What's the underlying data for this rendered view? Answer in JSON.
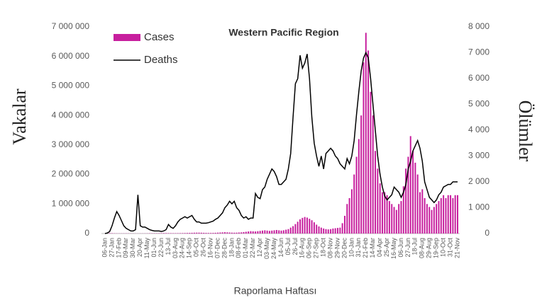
{
  "chart_data": {
    "type": "bar-line",
    "title": "Western Pacific Region",
    "y_label": "Vakalar",
    "y2_label": "Ölümler",
    "x_label": "Raporlama Haftası",
    "legend": "top-left",
    "categories": [
      "06-Jan",
      null,
      null,
      "27-Jan",
      null,
      null,
      "17-Feb",
      null,
      null,
      "09-Mar",
      null,
      null,
      "30-Mar",
      null,
      null,
      "20-Apr",
      null,
      null,
      "11-May",
      null,
      null,
      "01-Jun",
      null,
      null,
      "22-Jun",
      null,
      null,
      "13-Jul",
      null,
      null,
      "03-Aug",
      null,
      null,
      "24-Aug",
      null,
      null,
      "14-Sep",
      null,
      null,
      "05-Oct",
      null,
      null,
      "26-Oct",
      null,
      null,
      "16-Nov",
      null,
      null,
      "07-Dec",
      null,
      null,
      "28-Dec",
      null,
      null,
      "18-Jan",
      null,
      null,
      "08-Feb",
      null,
      null,
      "01-Mar",
      null,
      null,
      "22-Mar",
      null,
      null,
      "12-Apr",
      null,
      null,
      "03-May",
      null,
      null,
      "24-May",
      null,
      null,
      "14-Jun",
      null,
      null,
      "05-Jul",
      null,
      null,
      "26-Jul",
      null,
      null,
      "16-Aug",
      null,
      null,
      "06-Sep",
      null,
      null,
      "27-Sep",
      null,
      null,
      "18-Oct",
      null,
      null,
      "08-Nov",
      null,
      null,
      "29-Nov",
      null,
      null,
      "20-Dec",
      null,
      null,
      "10-Jan",
      null,
      null,
      "31-Jan",
      null,
      null,
      "21-Feb",
      null,
      null,
      "14-Mar",
      null,
      null,
      "04-Apr",
      null,
      null,
      "25-Apr",
      null,
      null,
      "16-May",
      null,
      null,
      "06-Jun",
      null,
      null,
      "27-Jun",
      null,
      null,
      "18-Jul",
      null,
      null,
      "08-Aug",
      null,
      null,
      "29-Aug",
      null,
      null,
      "19-Sep",
      null,
      null,
      "10-Oct",
      null,
      null,
      "31-Oct",
      null,
      null,
      "21-Nov"
    ],
    "series": [
      {
        "name": "Cases",
        "kind": "bar",
        "color": "#c71f9e",
        "values": [
          1000,
          5000,
          15000,
          12000,
          8000,
          6000,
          5000,
          5000,
          6000,
          7000,
          6000,
          5000,
          4000,
          3000,
          3000,
          4000,
          4000,
          5000,
          6000,
          8000,
          9000,
          10000,
          10000,
          12000,
          14000,
          16000,
          15000,
          14000,
          13000,
          12000,
          12000,
          13000,
          14000,
          16000,
          18000,
          20000,
          22000,
          25000,
          28000,
          30000,
          30000,
          28000,
          25000,
          22000,
          20000,
          20000,
          22000,
          25000,
          30000,
          35000,
          40000,
          45000,
          40000,
          35000,
          30000,
          28000,
          30000,
          35000,
          40000,
          50000,
          60000,
          70000,
          80000,
          75000,
          70000,
          80000,
          90000,
          100000,
          110000,
          100000,
          90000,
          100000,
          110000,
          120000,
          110000,
          100000,
          110000,
          130000,
          150000,
          200000,
          250000,
          320000,
          400000,
          480000,
          530000,
          560000,
          540000,
          500000,
          450000,
          380000,
          300000,
          240000,
          200000,
          170000,
          150000,
          140000,
          150000,
          170000,
          180000,
          190000,
          200000,
          350000,
          600000,
          1000000,
          1200000,
          1500000,
          2000000,
          2600000,
          3200000,
          4000000,
          5800000,
          6800000,
          6200000,
          4800000,
          4000000,
          2800000,
          2200000,
          1700000,
          1400000,
          1400000,
          1300000,
          1100000,
          1000000,
          900000,
          800000,
          1000000,
          1100000,
          1600000,
          2200000,
          2600000,
          3300000,
          2800000,
          2400000,
          2000000,
          1400000,
          1500000,
          1200000,
          1000000,
          900000,
          800000,
          900000,
          1000000,
          1100000,
          1200000,
          1300000,
          1200000,
          1300000,
          1300000,
          1200000,
          1300000,
          1300000
        ]
      },
      {
        "name": "Deaths",
        "kind": "line",
        "axis": "y2",
        "color": "#000000",
        "values": [
          0,
          20,
          80,
          300,
          600,
          850,
          700,
          500,
          300,
          200,
          150,
          100,
          100,
          150,
          1500,
          300,
          250,
          250,
          200,
          150,
          120,
          100,
          100,
          100,
          80,
          100,
          150,
          350,
          250,
          200,
          300,
          450,
          550,
          600,
          650,
          600,
          650,
          700,
          550,
          450,
          450,
          400,
          400,
          400,
          420,
          450,
          480,
          550,
          600,
          700,
          800,
          1000,
          1100,
          1250,
          1150,
          1250,
          1000,
          900,
          700,
          600,
          650,
          550,
          600,
          600,
          1550,
          1400,
          1350,
          1700,
          1800,
          2100,
          2300,
          2500,
          2400,
          2200,
          1900,
          1900,
          2000,
          2100,
          2500,
          3100,
          4500,
          5800,
          6000,
          6900,
          6400,
          6600,
          6950,
          6000,
          4500,
          3500,
          3000,
          2600,
          3000,
          2500,
          3100,
          3200,
          3300,
          3200,
          3000,
          2900,
          2700,
          2600,
          2500,
          2900,
          2700,
          3000,
          3600,
          4600,
          5500,
          6300,
          6800,
          7000,
          6800,
          6000,
          5000,
          4000,
          3000,
          2300,
          1800,
          1450,
          1300,
          1400,
          1500,
          1800,
          1700,
          1600,
          1400,
          1600,
          1900,
          2500,
          2800,
          3200,
          3400,
          3600,
          3300,
          2800,
          2000,
          1700,
          1400,
          1300,
          1200,
          1300,
          1500,
          1600,
          1800,
          1850,
          1900,
          1900,
          2000,
          2000,
          2000
        ]
      }
    ],
    "ylim": [
      0,
      7000000
    ],
    "yticks": [
      0,
      {
        "value": 1000000,
        "label": "1 000 000"
      },
      {
        "value": 2000000,
        "label": "2 000 000"
      },
      {
        "value": 3000000,
        "label": "3 000 000"
      },
      {
        "value": 4000000,
        "label": "4 000 000"
      },
      {
        "value": 5000000,
        "label": "5 000 000"
      },
      {
        "value": 6000000,
        "label": "6 000 000"
      },
      {
        "value": 7000000,
        "label": "7 000 000"
      }
    ],
    "y2lim": [
      0,
      8000
    ],
    "y2ticks": [
      0,
      {
        "value": 1000,
        "label": "1 000"
      },
      {
        "value": 2000,
        "label": "2 000"
      },
      {
        "value": 3000,
        "label": "3 000"
      },
      {
        "value": 4000,
        "label": "4 000"
      },
      {
        "value": 5000,
        "label": "5 000"
      },
      {
        "value": 6000,
        "label": "6 000"
      },
      {
        "value": 7000,
        "label": "7 000"
      },
      {
        "value": 8000,
        "label": "8 000"
      }
    ]
  }
}
